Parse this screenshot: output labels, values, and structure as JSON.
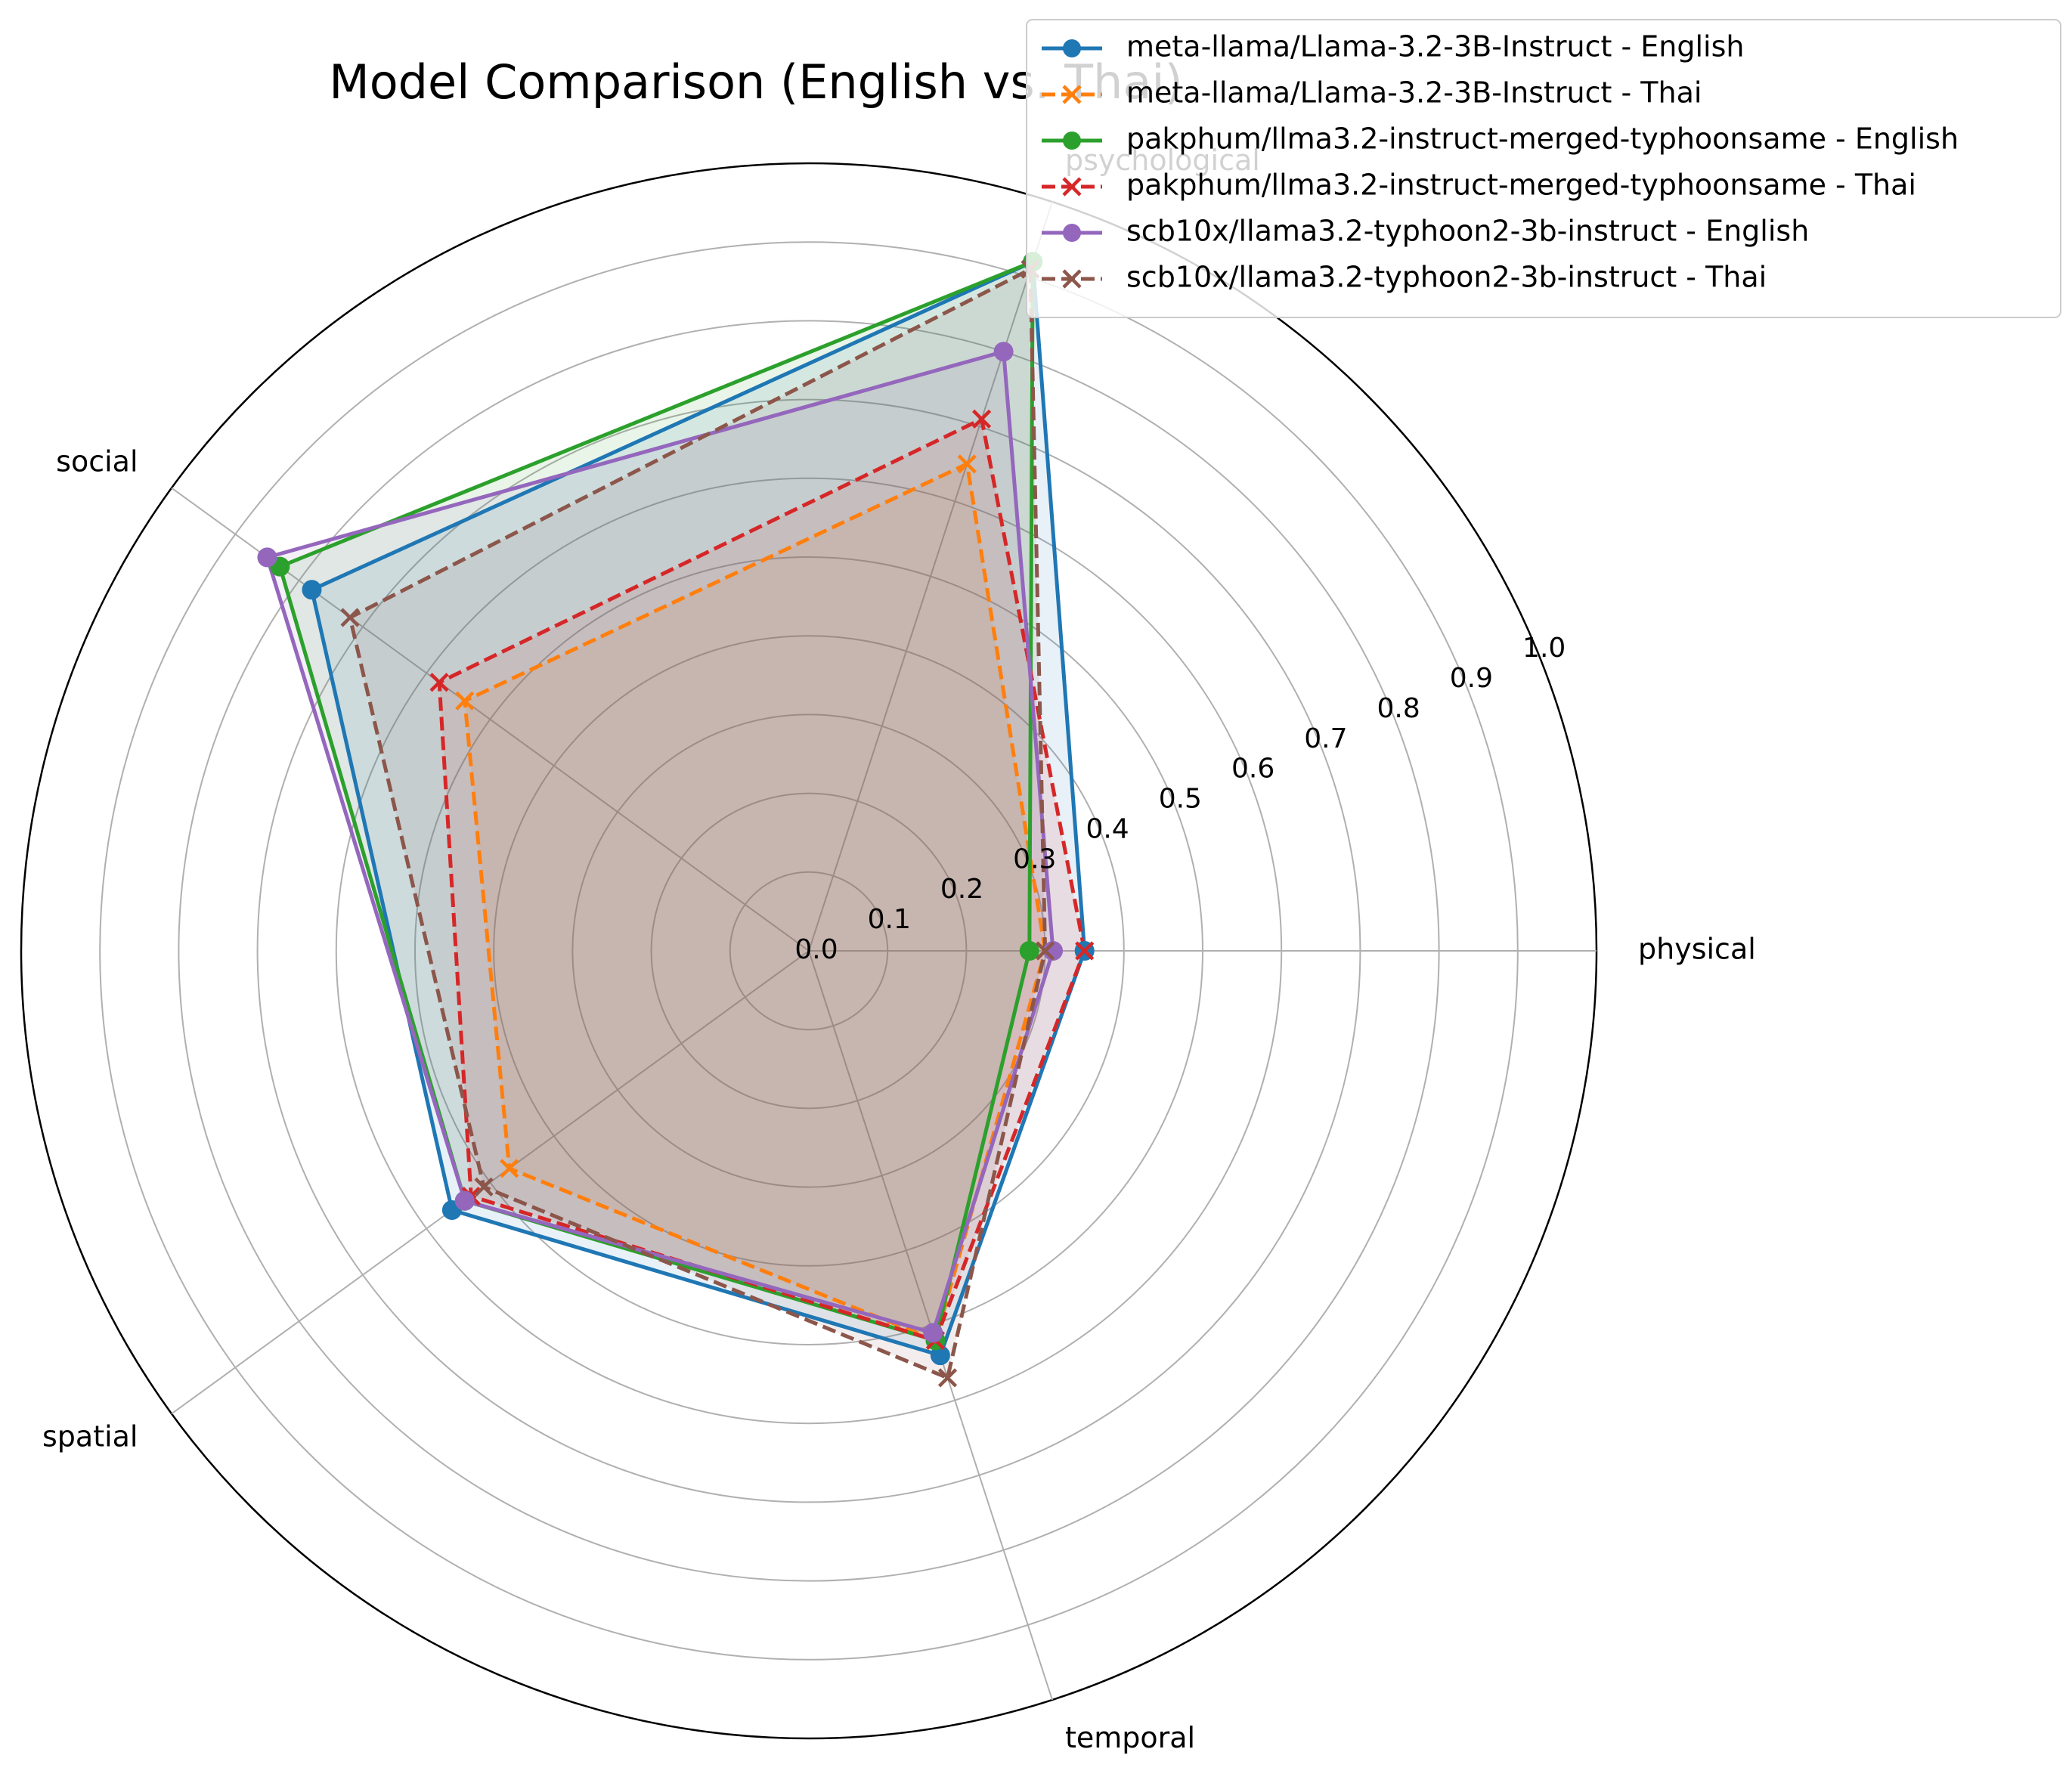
{
  "chart_data": {
    "type": "radar",
    "title": "Model Comparison (English vs. Thai)",
    "categories": [
      "physical",
      "psychological",
      "social",
      "spatial",
      "temporal"
    ],
    "rlim": [
      0.0,
      1.0
    ],
    "r_ticks": [
      "0.0",
      "0.1",
      "0.2",
      "0.3",
      "0.4",
      "0.5",
      "0.6",
      "0.7",
      "0.8",
      "0.9",
      "1.0"
    ],
    "grid": true,
    "legend": "top-right",
    "series": [
      {
        "name": "meta-llama/Llama-3.2-3B-Instruct - English",
        "values": [
          0.35,
          0.92,
          0.78,
          0.56,
          0.54
        ],
        "color": "#1f77b4",
        "line": "solid",
        "marker": "circle"
      },
      {
        "name": "meta-llama/Llama-3.2-3B-Instruct - Thai",
        "values": [
          0.3,
          0.65,
          0.54,
          0.47,
          0.52
        ],
        "color": "#ff7f0e",
        "line": "dashed",
        "marker": "x"
      },
      {
        "name": "pakphum/llma3.2-instruct-merged-typhoonsame - English",
        "values": [
          0.28,
          0.92,
          0.83,
          0.54,
          0.52
        ],
        "color": "#2ca02c",
        "line": "solid",
        "marker": "circle"
      },
      {
        "name": "pakphum/llma3.2-instruct-merged-typhoonsame - Thai",
        "values": [
          0.35,
          0.71,
          0.58,
          0.53,
          0.52
        ],
        "color": "#d62728",
        "line": "dashed",
        "marker": "x"
      },
      {
        "name": "scb10x/llama3.2-typhoon2-3b-instruct - English",
        "values": [
          0.31,
          0.8,
          0.85,
          0.54,
          0.51
        ],
        "color": "#9467bd",
        "line": "solid",
        "marker": "circle"
      },
      {
        "name": "scb10x/llama3.2-typhoon2-3b-instruct - Thai",
        "values": [
          0.3,
          0.91,
          0.72,
          0.51,
          0.57
        ],
        "color": "#8c564b",
        "line": "dashed",
        "marker": "x"
      }
    ]
  }
}
